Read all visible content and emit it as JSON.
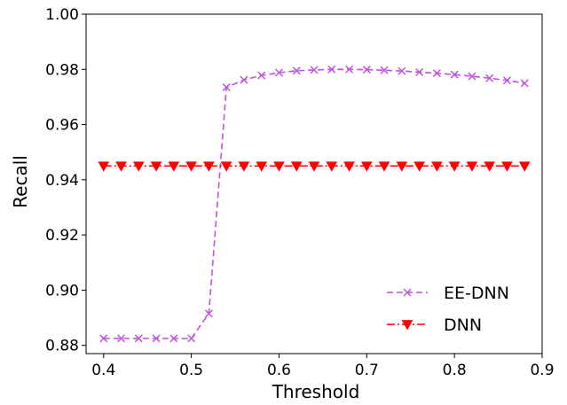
{
  "chart_data": {
    "type": "line",
    "title": "",
    "xlabel": "Threshold",
    "ylabel": "Recall",
    "xlim": [
      0.38,
      0.9
    ],
    "ylim": [
      0.877,
      1.0
    ],
    "xticks": [
      0.4,
      0.5,
      0.6,
      0.7,
      0.8,
      0.9
    ],
    "xtick_labels": [
      "0.4",
      "0.5",
      "0.6",
      "0.7",
      "0.8",
      "0.9"
    ],
    "yticks": [
      0.88,
      0.9,
      0.92,
      0.94,
      0.96,
      0.98,
      1.0
    ],
    "ytick_labels": [
      "0.88",
      "0.90",
      "0.92",
      "0.94",
      "0.96",
      "0.98",
      "1.00"
    ],
    "grid": false,
    "legend_position": "lower-right",
    "x": [
      0.4,
      0.42,
      0.44,
      0.46,
      0.48,
      0.5,
      0.52,
      0.54,
      0.56,
      0.58,
      0.6,
      0.62,
      0.64,
      0.66,
      0.68,
      0.7,
      0.72,
      0.74,
      0.76,
      0.78,
      0.8,
      0.82,
      0.84,
      0.86,
      0.88
    ],
    "series": [
      {
        "name": "EE-DNN",
        "color": "#bf55d8",
        "linestyle": "dashed",
        "marker": "x",
        "values": [
          0.8825,
          0.8825,
          0.8825,
          0.8825,
          0.8825,
          0.8825,
          0.8915,
          0.9735,
          0.9762,
          0.9778,
          0.9788,
          0.9795,
          0.9798,
          0.98,
          0.98,
          0.9799,
          0.9797,
          0.9794,
          0.979,
          0.9786,
          0.9781,
          0.9775,
          0.9768,
          0.976,
          0.975
        ]
      },
      {
        "name": "DNN",
        "color": "#ff0000",
        "linestyle": "dashdot",
        "marker": "triangle-down",
        "values": [
          0.945,
          0.945,
          0.945,
          0.945,
          0.945,
          0.945,
          0.945,
          0.945,
          0.945,
          0.945,
          0.945,
          0.945,
          0.945,
          0.945,
          0.945,
          0.945,
          0.945,
          0.945,
          0.945,
          0.945,
          0.945,
          0.945,
          0.945,
          0.945,
          0.945
        ]
      }
    ]
  }
}
